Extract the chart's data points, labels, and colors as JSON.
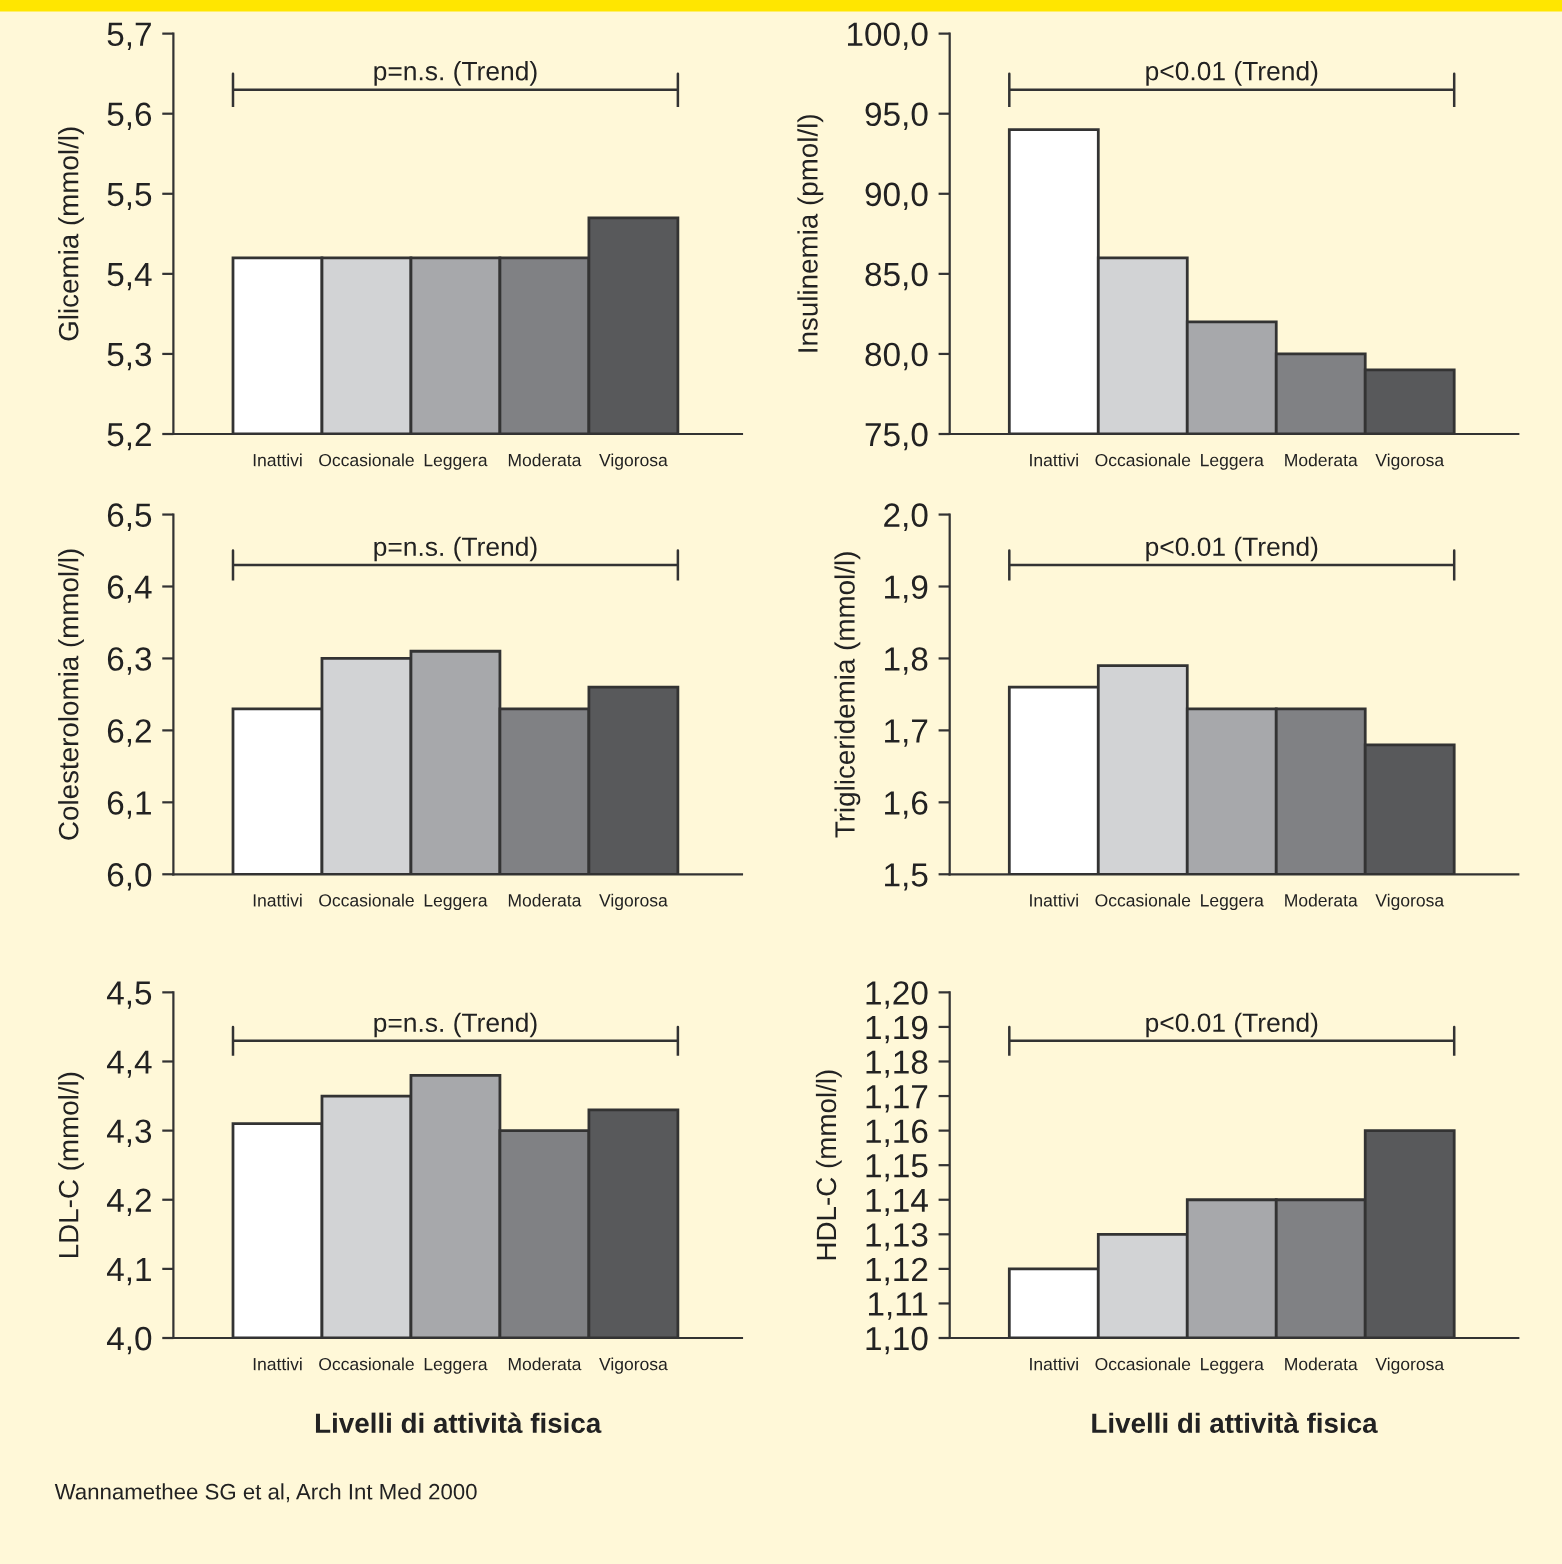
{
  "chart_data": [
    {
      "type": "bar",
      "ylabel": "Glicemia (mmol/l)",
      "categories": [
        "Inattivi",
        "Occasionale",
        "Leggera",
        "Moderata",
        "Vigorosa"
      ],
      "values": [
        5.42,
        5.42,
        5.42,
        5.42,
        5.47
      ],
      "colors": [
        "#ffffff",
        "#d2d3d5",
        "#a7a8ab",
        "#808184",
        "#58595b"
      ],
      "ylim": [
        5.2,
        5.7
      ],
      "yticks": [
        {
          "value": 5.2,
          "label": "5,2"
        },
        {
          "value": 5.3,
          "label": "5,3"
        },
        {
          "value": 5.4,
          "label": "5,4"
        },
        {
          "value": 5.5,
          "label": "5,5"
        },
        {
          "value": 5.6,
          "label": "5,6"
        },
        {
          "value": 5.7,
          "label": "5,7"
        }
      ],
      "annotations": [
        "p=n.s. (Trend)"
      ]
    },
    {
      "type": "bar",
      "ylabel": "Insulinemia (pmol/l)",
      "categories": [
        "Inattivi",
        "Occasionale",
        "Leggera",
        "Moderata",
        "Vigorosa"
      ],
      "values": [
        94,
        86,
        82,
        80,
        79
      ],
      "colors": [
        "#ffffff",
        "#d2d3d5",
        "#a7a8ab",
        "#808184",
        "#58595b"
      ],
      "ylim": [
        75,
        100
      ],
      "yticks": [
        {
          "value": 75,
          "label": "75,0"
        },
        {
          "value": 80,
          "label": "80,0"
        },
        {
          "value": 85,
          "label": "85,0"
        },
        {
          "value": 90,
          "label": "90,0"
        },
        {
          "value": 95,
          "label": "95,0"
        },
        {
          "value": 100,
          "label": "100,0"
        }
      ],
      "annotations": [
        "p<0.01 (Trend)"
      ]
    },
    {
      "type": "bar",
      "ylabel": "Colesterolomia (mmol/l)",
      "categories": [
        "Inattivi",
        "Occasionale",
        "Leggera",
        "Moderata",
        "Vigorosa"
      ],
      "values": [
        6.23,
        6.3,
        6.31,
        6.23,
        6.26
      ],
      "colors": [
        "#ffffff",
        "#d2d3d5",
        "#a7a8ab",
        "#808184",
        "#58595b"
      ],
      "ylim": [
        6.0,
        6.5
      ],
      "yticks": [
        {
          "value": 6.0,
          "label": "6,0"
        },
        {
          "value": 6.1,
          "label": "6,1"
        },
        {
          "value": 6.2,
          "label": "6,2"
        },
        {
          "value": 6.3,
          "label": "6,3"
        },
        {
          "value": 6.4,
          "label": "6,4"
        },
        {
          "value": 6.5,
          "label": "6,5"
        }
      ],
      "annotations": [
        "p=n.s. (Trend)"
      ]
    },
    {
      "type": "bar",
      "ylabel": "Trigliceridemia (mmol/l)",
      "categories": [
        "Inattivi",
        "Occasionale",
        "Leggera",
        "Moderata",
        "Vigorosa"
      ],
      "values": [
        1.76,
        1.79,
        1.73,
        1.73,
        1.68
      ],
      "colors": [
        "#ffffff",
        "#d2d3d5",
        "#a7a8ab",
        "#808184",
        "#58595b"
      ],
      "ylim": [
        1.5,
        2.0
      ],
      "yticks": [
        {
          "value": 1.5,
          "label": "1,5"
        },
        {
          "value": 1.6,
          "label": "1,6"
        },
        {
          "value": 1.7,
          "label": "1,7"
        },
        {
          "value": 1.8,
          "label": "1,8"
        },
        {
          "value": 1.9,
          "label": "1,9"
        },
        {
          "value": 2.0,
          "label": "2,0"
        }
      ],
      "annotations": [
        "p<0.01 (Trend)"
      ]
    },
    {
      "type": "bar",
      "ylabel": "LDL-C (mmol/l)",
      "xlabel": "Livelli di attività fisica",
      "categories": [
        "Inattivi",
        "Occasionale",
        "Leggera",
        "Moderata",
        "Vigorosa"
      ],
      "values": [
        4.31,
        4.35,
        4.38,
        4.3,
        4.33
      ],
      "colors": [
        "#ffffff",
        "#d2d3d5",
        "#a7a8ab",
        "#808184",
        "#58595b"
      ],
      "ylim": [
        4.0,
        4.5
      ],
      "yticks": [
        {
          "value": 4.0,
          "label": "4,0"
        },
        {
          "value": 4.1,
          "label": "4,1"
        },
        {
          "value": 4.2,
          "label": "4,2"
        },
        {
          "value": 4.3,
          "label": "4,3"
        },
        {
          "value": 4.4,
          "label": "4,4"
        },
        {
          "value": 4.5,
          "label": "4,5"
        }
      ],
      "annotations": [
        "p=n.s. (Trend)",
        "Wannamethee SG et al, Arch Int Med 2000"
      ]
    },
    {
      "type": "bar",
      "ylabel": "HDL-C (mmol/l)",
      "xlabel": "Livelli di attività fisica",
      "categories": [
        "Inattivi",
        "Occasionale",
        "Leggera",
        "Moderata",
        "Vigorosa"
      ],
      "values": [
        1.12,
        1.13,
        1.14,
        1.14,
        1.16
      ],
      "colors": [
        "#ffffff",
        "#d2d3d5",
        "#a7a8ab",
        "#808184",
        "#58595b"
      ],
      "ylim": [
        1.1,
        1.2
      ],
      "yticks": [
        {
          "value": 1.1,
          "label": "1,10"
        },
        {
          "value": 1.11,
          "label": "1,11"
        },
        {
          "value": 1.12,
          "label": "1,12"
        },
        {
          "value": 1.13,
          "label": "1,13"
        },
        {
          "value": 1.14,
          "label": "1,14"
        },
        {
          "value": 1.15,
          "label": "1,15"
        },
        {
          "value": 1.16,
          "label": "1,16"
        },
        {
          "value": 1.17,
          "label": "1,17"
        },
        {
          "value": 1.18,
          "label": "1,18"
        },
        {
          "value": 1.19,
          "label": "1,19"
        },
        {
          "value": 1.2,
          "label": "1,20"
        }
      ],
      "annotations": [
        "p<0.01 (Trend)"
      ]
    }
  ]
}
